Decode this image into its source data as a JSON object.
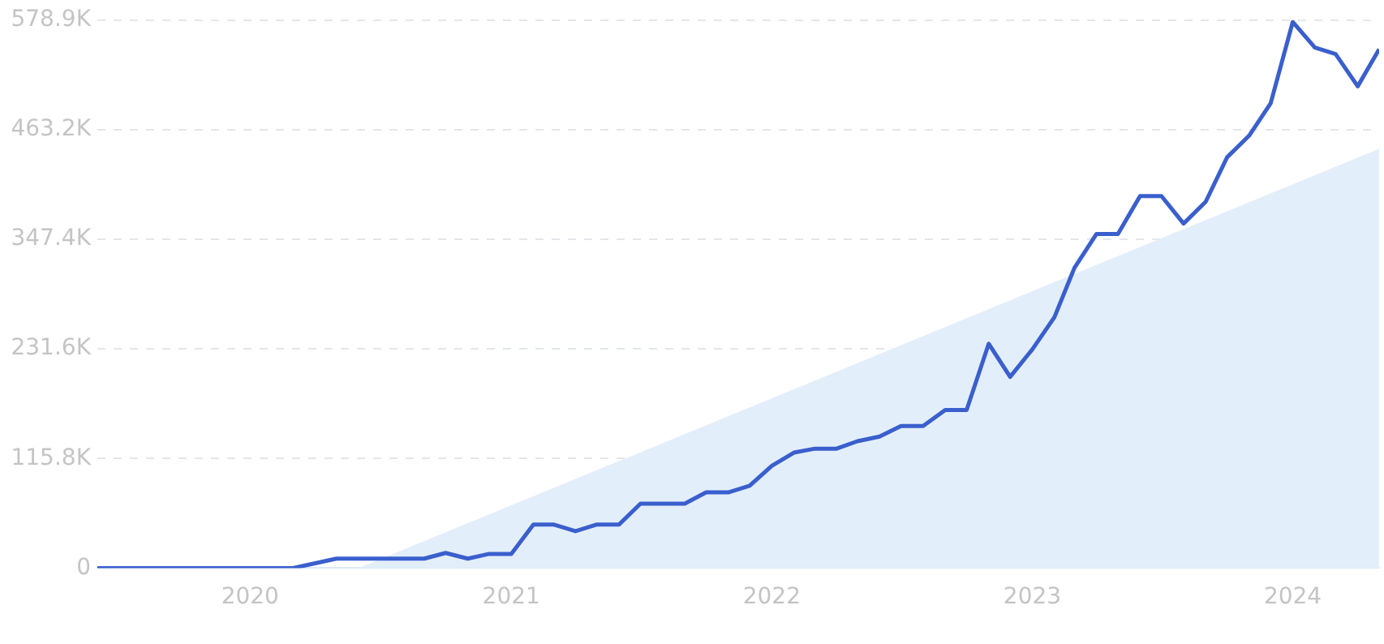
{
  "chart_data": {
    "type": "line",
    "x": [
      "2019-06",
      "2019-07",
      "2019-08",
      "2019-09",
      "2019-10",
      "2019-11",
      "2019-12",
      "2020-01",
      "2020-02",
      "2020-03",
      "2020-04",
      "2020-05",
      "2020-06",
      "2020-07",
      "2020-08",
      "2020-09",
      "2020-10",
      "2020-11",
      "2020-12",
      "2021-01",
      "2021-02",
      "2021-03",
      "2021-04",
      "2021-05",
      "2021-06",
      "2021-07",
      "2021-08",
      "2021-09",
      "2021-10",
      "2021-11",
      "2021-12",
      "2022-01",
      "2022-02",
      "2022-03",
      "2022-04",
      "2022-05",
      "2022-06",
      "2022-07",
      "2022-08",
      "2022-09",
      "2022-10",
      "2022-11",
      "2022-12",
      "2023-01",
      "2023-02",
      "2023-03",
      "2023-04",
      "2023-05",
      "2023-06",
      "2023-07",
      "2023-08",
      "2023-09",
      "2023-10",
      "2023-11",
      "2023-12",
      "2024-01",
      "2024-02",
      "2024-03",
      "2024-04",
      "2024-05"
    ],
    "series": [
      {
        "color": "#3a5fcd",
        "values": [
          0,
          0,
          0,
          0,
          0,
          0,
          0,
          0,
          0,
          0,
          5000,
          10000,
          10000,
          10000,
          10000,
          10000,
          16000,
          10000,
          15000,
          15000,
          46000,
          46000,
          39000,
          46000,
          46000,
          68000,
          68000,
          68000,
          80000,
          80000,
          87000,
          108000,
          122000,
          126000,
          126000,
          134000,
          139000,
          150000,
          150000,
          167000,
          167000,
          237000,
          202000,
          231000,
          265000,
          317000,
          353000,
          353000,
          393000,
          393000,
          364000,
          387000,
          434000,
          457000,
          491000,
          577000,
          550000,
          543000,
          509000,
          548000
        ]
      },
      {
        "type": "area",
        "color": "#e3eefb",
        "x": [
          "2020-06",
          "2024-05"
        ],
        "values": [
          0,
          443000
        ]
      }
    ],
    "xlim": [
      "2019-06",
      "2024-05"
    ],
    "xticks": [
      "2020",
      "2021",
      "2022",
      "2023",
      "2024"
    ],
    "ylim": [
      0,
      578900
    ],
    "yticks": [
      0,
      {
        "value": 115800,
        "label": "115.8K"
      },
      {
        "value": 231600,
        "label": "231.6K"
      },
      {
        "value": 347400,
        "label": "347.4K"
      },
      {
        "value": 463200,
        "label": "463.2K"
      },
      {
        "value": 578900,
        "label": "578.9K"
      }
    ],
    "grid": "y",
    "legend": false,
    "marker": "none",
    "line_style": "solid"
  }
}
